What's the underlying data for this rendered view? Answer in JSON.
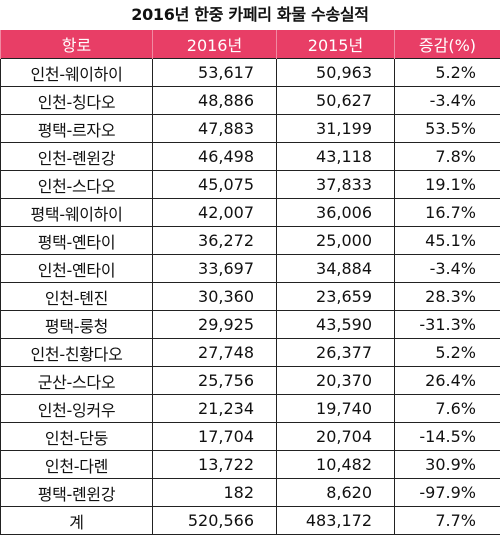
{
  "title": "2016년 한중 카페리 화물 수송실적",
  "headers": [
    "항로",
    "2016년",
    "2015년",
    "증감(%)"
  ],
  "rows": [
    {
      "route": "인천-웨이하이",
      "y2016": "53,617",
      "y2015": "50,963",
      "change": "5.2%"
    },
    {
      "route": "인천-칭다오",
      "y2016": "48,886",
      "y2015": "50,627",
      "change": "-3.4%"
    },
    {
      "route": "평택-르자오",
      "y2016": "47,883",
      "y2015": "31,199",
      "change": "53.5%"
    },
    {
      "route": "인천-롄윈강",
      "y2016": "46,498",
      "y2015": "43,118",
      "change": "7.8%"
    },
    {
      "route": "인천-스다오",
      "y2016": "45,075",
      "y2015": "37,833",
      "change": "19.1%"
    },
    {
      "route": "평택-웨이하이",
      "y2016": "42,007",
      "y2015": "36,006",
      "change": "16.7%"
    },
    {
      "route": "평택-옌타이",
      "y2016": "36,272",
      "y2015": "25,000",
      "change": "45.1%"
    },
    {
      "route": "인천-옌타이",
      "y2016": "33,697",
      "y2015": "34,884",
      "change": "-3.4%"
    },
    {
      "route": "인천-톈진",
      "y2016": "30,360",
      "y2015": "23,659",
      "change": "28.3%"
    },
    {
      "route": "평택-룽청",
      "y2016": "29,925",
      "y2015": "43,590",
      "change": "-31.3%"
    },
    {
      "route": "인천-친황다오",
      "y2016": "27,748",
      "y2015": "26,377",
      "change": "5.2%"
    },
    {
      "route": "군산-스다오",
      "y2016": "25,756",
      "y2015": "20,370",
      "change": "26.4%"
    },
    {
      "route": "인천-잉커우",
      "y2016": "21,234",
      "y2015": "19,740",
      "change": "7.6%"
    },
    {
      "route": "인천-단둥",
      "y2016": "17,704",
      "y2015": "20,704",
      "change": "-14.5%"
    },
    {
      "route": "인천-다롄",
      "y2016": "13,722",
      "y2015": "10,482",
      "change": "30.9%"
    },
    {
      "route": "평택-롄윈강",
      "y2016": "182",
      "y2015": "8,620",
      "change": "-97.9%"
    },
    {
      "route": "계",
      "y2016": "520,566",
      "y2015": "483,172",
      "change": "7.7%"
    }
  ]
}
